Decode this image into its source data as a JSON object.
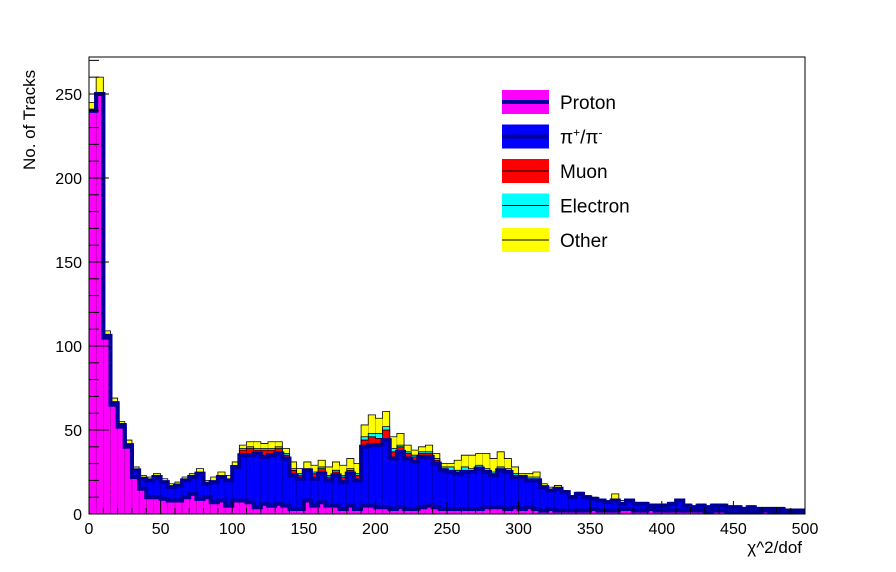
{
  "chart_data": {
    "type": "area",
    "xlabel": "χ^2/dof",
    "ylabel": "No. of Tracks",
    "xlim": [
      0,
      500
    ],
    "ylim": [
      0,
      272
    ],
    "x_ticks": [
      "0",
      "50",
      "100",
      "150",
      "200",
      "250",
      "300",
      "350",
      "400",
      "450",
      "500"
    ],
    "y_ticks": [
      "0",
      "50",
      "100",
      "150",
      "200",
      "250"
    ],
    "bin_width": 5,
    "stacking": "cumulative",
    "legend_position": "top-right",
    "series": [
      {
        "name": "Proton",
        "key": "proton",
        "color": "#ff00ff",
        "line_color": "#000099",
        "thick_line": true,
        "values": [
          240,
          250,
          105,
          65,
          52,
          40,
          22,
          15,
          10,
          10,
          9,
          8,
          8,
          10,
          12,
          9,
          10,
          7,
          8,
          5,
          8,
          8,
          7,
          4,
          6,
          5,
          6,
          5,
          3,
          3,
          8,
          5,
          7,
          5,
          5,
          3,
          5,
          3,
          5,
          5,
          4,
          4,
          3,
          4,
          3,
          3,
          4,
          5,
          4,
          3,
          3,
          3,
          3,
          3,
          3,
          4,
          4,
          4,
          3,
          4,
          3,
          4,
          3,
          2,
          3,
          2,
          2,
          2,
          2,
          2,
          3,
          2,
          2,
          2,
          3,
          3,
          2,
          2,
          3,
          2,
          2,
          2,
          2,
          2,
          2,
          2,
          1,
          2,
          2,
          1,
          1,
          1,
          1,
          1,
          2,
          1,
          1,
          1,
          1,
          1
        ]
      },
      {
        "name": "π+/π-",
        "key": "pion",
        "color": "#0000ff",
        "line_color": "#000099",
        "thick_line": true,
        "values": [
          0,
          0,
          1,
          1,
          1,
          1,
          4,
          6,
          10,
          12,
          10,
          8,
          9,
          10,
          10,
          15,
          8,
          12,
          14,
          15,
          20,
          27,
          28,
          32,
          28,
          30,
          30,
          28,
          20,
          18,
          18,
          16,
          17,
          15,
          18,
          16,
          19,
          17,
          35,
          36,
          37,
          40,
          30,
          33,
          30,
          28,
          30,
          29,
          26,
          23,
          22,
          21,
          22,
          22,
          24,
          21,
          19,
          22,
          22,
          18,
          19,
          16,
          17,
          14,
          11,
          13,
          11,
          8,
          10,
          8,
          6,
          6,
          5,
          6,
          3,
          5,
          4,
          4,
          2,
          3,
          3,
          4,
          6,
          3,
          2,
          3,
          3,
          3,
          3,
          3,
          3,
          2,
          3,
          2,
          1,
          2,
          2,
          1,
          1,
          1
        ]
      },
      {
        "name": "Muon",
        "key": "muon",
        "color": "#ff0000",
        "line_color": "#000000",
        "thick_line": false,
        "values": [
          0,
          0,
          0,
          0,
          0,
          0,
          0,
          0,
          0,
          0,
          0,
          0,
          0,
          0,
          0,
          0,
          0,
          0,
          0,
          0,
          0,
          3,
          4,
          2,
          4,
          3,
          3,
          2,
          3,
          2,
          0,
          3,
          3,
          2,
          2,
          3,
          2,
          3,
          4,
          5,
          4,
          6,
          4,
          3,
          3,
          3,
          2,
          2,
          2,
          1,
          1,
          1,
          1,
          1,
          1,
          1,
          1,
          1,
          1,
          1,
          0,
          1,
          1,
          0,
          0,
          0,
          0,
          0,
          0,
          0,
          0,
          0,
          0,
          0,
          0,
          0,
          0,
          0,
          0,
          0,
          0,
          0,
          0,
          0,
          0,
          0,
          0,
          0,
          0,
          0,
          0,
          0,
          0,
          0,
          0,
          0,
          0,
          0,
          0,
          0
        ]
      },
      {
        "name": "Electron",
        "key": "electron",
        "color": "#00ffff",
        "line_color": "#000000",
        "thick_line": false,
        "values": [
          0,
          0,
          0,
          0,
          0,
          0,
          0,
          0,
          0,
          0,
          0,
          0,
          0,
          0,
          0,
          0,
          0,
          0,
          0,
          0,
          0,
          1,
          1,
          1,
          1,
          1,
          1,
          1,
          1,
          1,
          1,
          1,
          1,
          1,
          1,
          1,
          1,
          1,
          2,
          2,
          3,
          2,
          2,
          1,
          1,
          1,
          1,
          1,
          1,
          1,
          2,
          1,
          2,
          1,
          1,
          1,
          1,
          1,
          1,
          1,
          0,
          1,
          1,
          0,
          0,
          0,
          0,
          0,
          0,
          0,
          0,
          0,
          0,
          0,
          0,
          0,
          0,
          0,
          0,
          0,
          0,
          0,
          0,
          0,
          0,
          0,
          0,
          0,
          0,
          0,
          0,
          0,
          0,
          0,
          0,
          0,
          0,
          0,
          0,
          0
        ]
      },
      {
        "name": "Other",
        "key": "other",
        "color": "#ffff00",
        "line_color": "#000000",
        "thick_line": false,
        "values": [
          5,
          10,
          3,
          3,
          2,
          3,
          2,
          2,
          2,
          2,
          2,
          2,
          2,
          2,
          2,
          3,
          2,
          3,
          3,
          3,
          3,
          2,
          3,
          4,
          3,
          4,
          3,
          3,
          4,
          3,
          4,
          4,
          4,
          5,
          5,
          6,
          6,
          6,
          7,
          11,
          9,
          9,
          7,
          7,
          4,
          3,
          3,
          4,
          3,
          2,
          2,
          6,
          7,
          8,
          7,
          9,
          8,
          9,
          6,
          4,
          2,
          2,
          3,
          2,
          2,
          2,
          1,
          1,
          1,
          1,
          1,
          1,
          1,
          4,
          2,
          1,
          1,
          1,
          1,
          1,
          1,
          1,
          1,
          1,
          1,
          1,
          1,
          1,
          1,
          1,
          1,
          1,
          1,
          1,
          1,
          1,
          1,
          1,
          1,
          1
        ]
      }
    ]
  }
}
